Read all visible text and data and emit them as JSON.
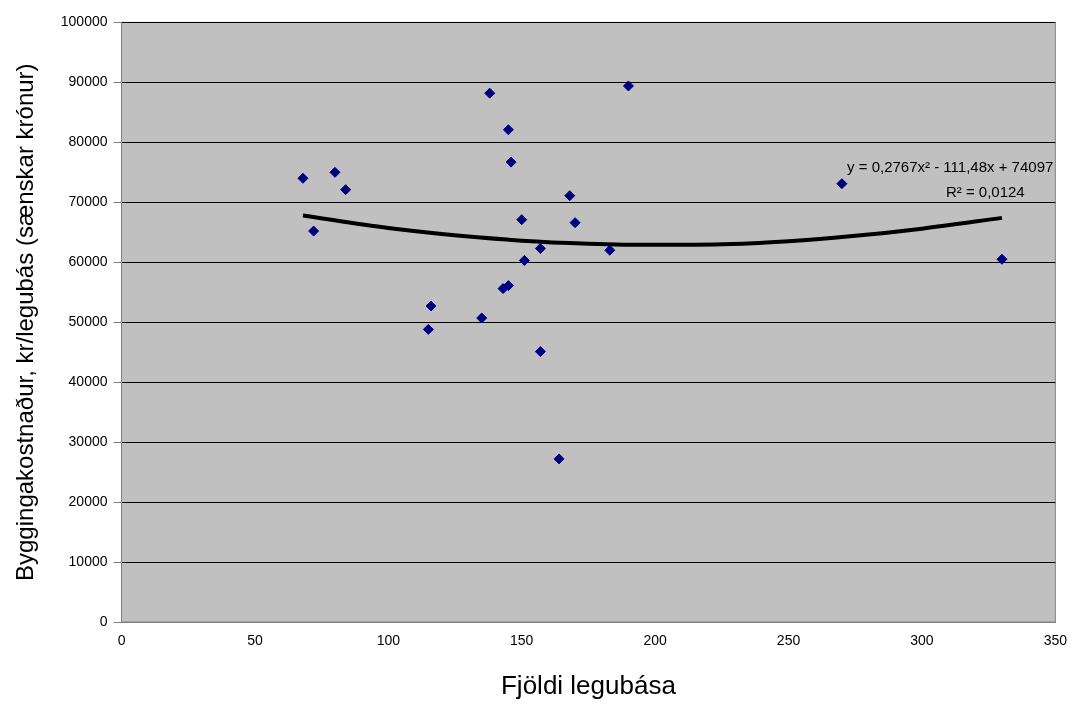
{
  "chart_data": {
    "type": "scatter",
    "xlabel": "Fjöldi legubása",
    "ylabel": "Byggingakostnaður, kr/legubás (sænskar krónur)",
    "xlim": [
      0,
      350
    ],
    "xticks": [
      0,
      50,
      100,
      150,
      200,
      250,
      300,
      350
    ],
    "ylim": [
      0,
      100000
    ],
    "yticks": [
      0,
      10000,
      20000,
      30000,
      40000,
      50000,
      60000,
      70000,
      80000,
      90000,
      100000
    ],
    "grid": "y",
    "legend": false,
    "marker": "diamond",
    "series": [
      {
        "color": "#000080",
        "x": [
          68,
          72,
          80,
          84,
          115,
          116,
          135,
          138,
          143,
          145,
          145,
          146,
          150,
          151,
          157,
          157,
          164,
          168,
          170,
          183,
          190,
          270,
          330
        ],
        "values": [
          74000,
          65200,
          75000,
          72100,
          48800,
          52700,
          50700,
          88200,
          55600,
          56100,
          82100,
          76700,
          67100,
          60300,
          62300,
          45100,
          27200,
          71100,
          66600,
          62000,
          89400,
          73100,
          60500
        ]
      },
      {
        "type": "line",
        "color": "#000000",
        "marker": "none",
        "x": [
          68,
          100,
          120,
          150,
          175,
          200,
          225,
          250,
          275,
          300,
          330
        ],
        "values": [
          67800,
          65700,
          64700,
          63600,
          63100,
          62900,
          63000,
          63500,
          64400,
          65600,
          67400
        ]
      }
    ],
    "annotations": [
      "y = 0,2767x² - 111,48x + 74097",
      "R² = 0,0124"
    ]
  }
}
